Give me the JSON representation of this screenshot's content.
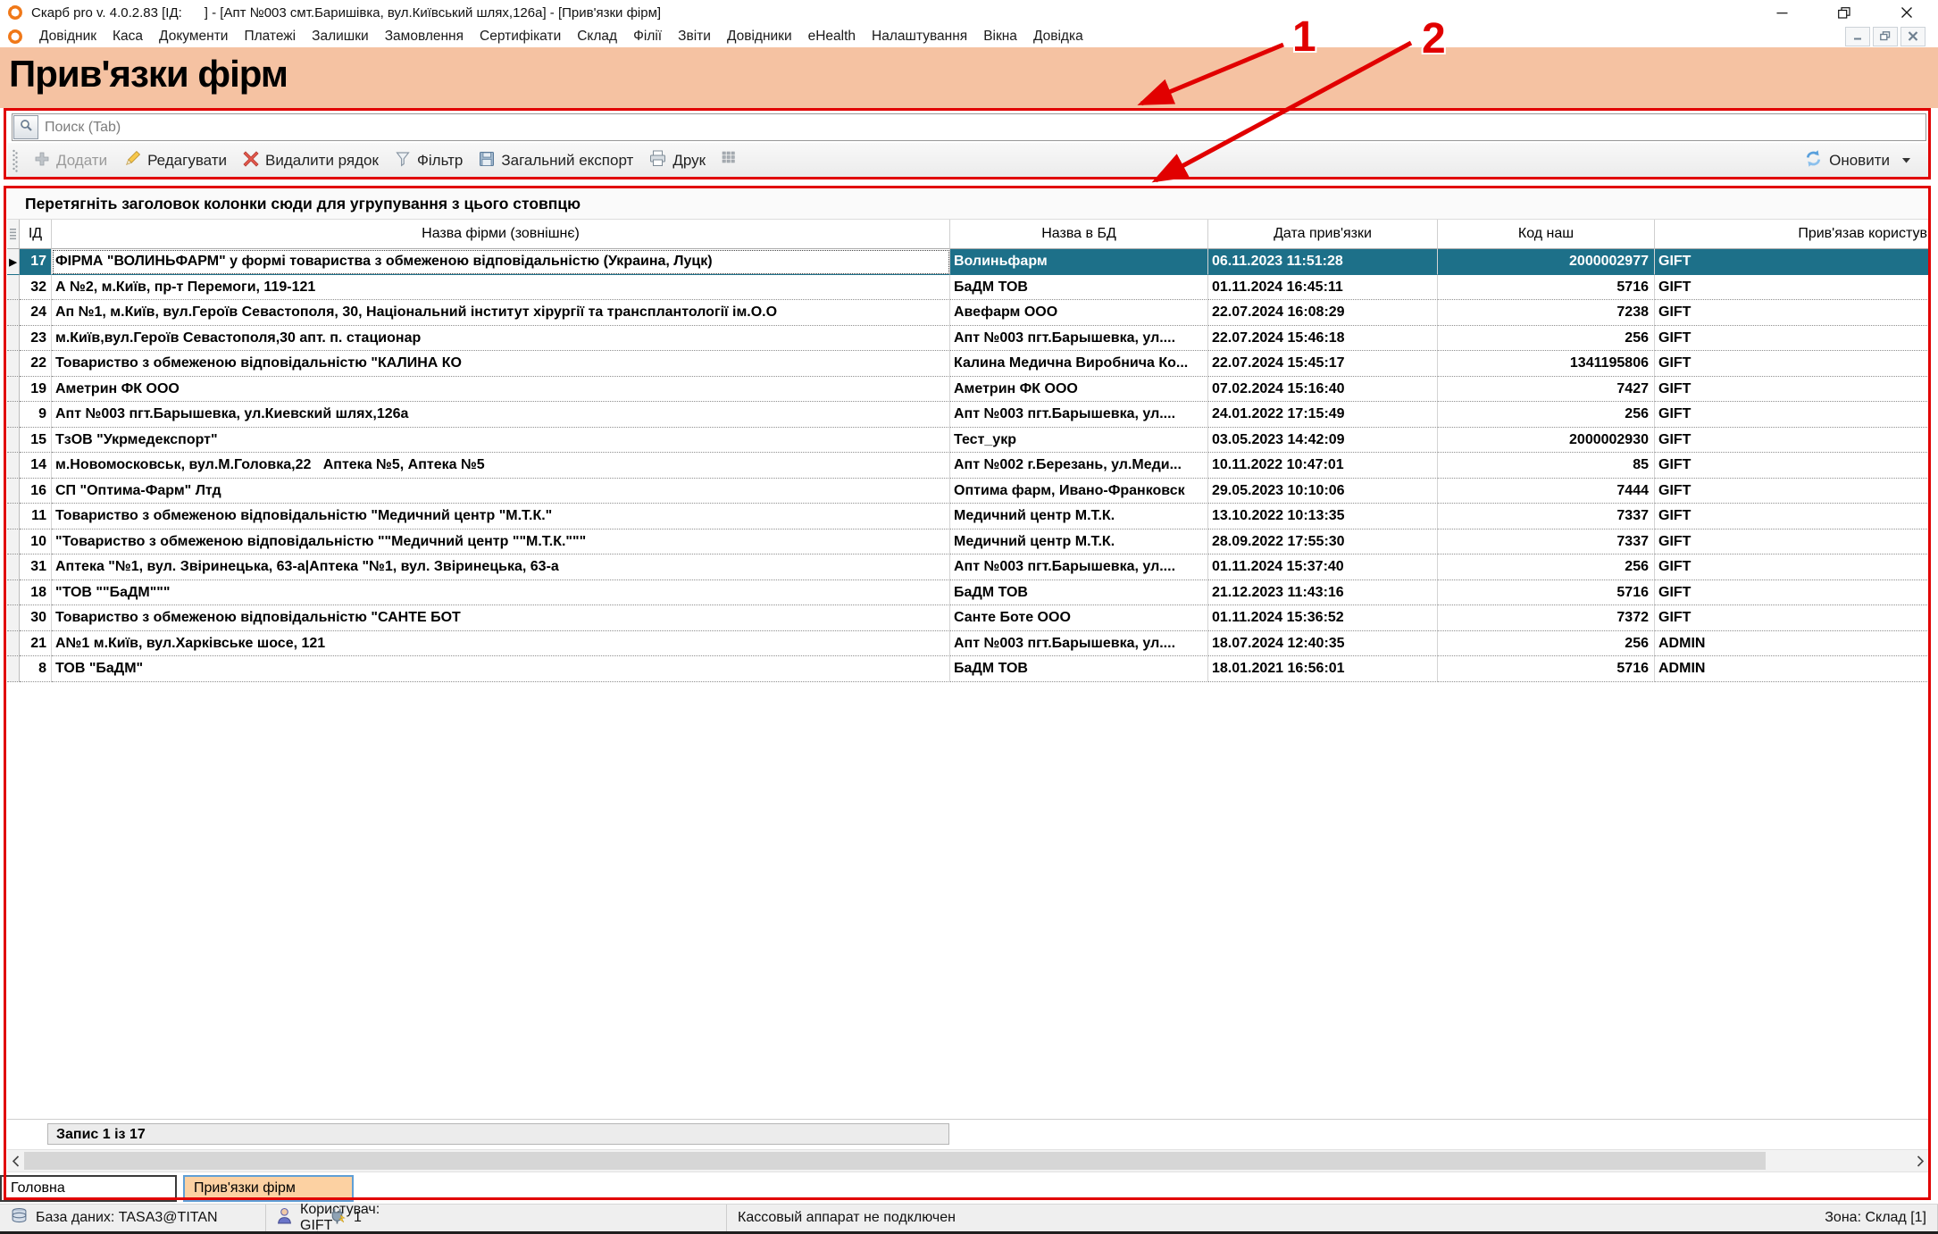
{
  "window": {
    "title": "Скарб pro v. 4.0.2.83 [ІД:      ] - [Апт №003 смт.Баришівка, вул.Київський шлях,126а] - [Прив'язки фірм]"
  },
  "menu": {
    "items": [
      {
        "label": "Довідник"
      },
      {
        "label": "Каса"
      },
      {
        "label": "Документи"
      },
      {
        "label": "Платежі"
      },
      {
        "label": "Залишки"
      },
      {
        "label": "Замовлення"
      },
      {
        "label": "Сертифікати"
      },
      {
        "label": "Склад"
      },
      {
        "label": "Філії"
      },
      {
        "label": "Звіти"
      },
      {
        "label": "Довідники"
      },
      {
        "label": "eHealth"
      },
      {
        "label": "Налаштування"
      },
      {
        "label": "Вікна"
      },
      {
        "label": "Довідка"
      }
    ]
  },
  "page": {
    "title": "Прив'язки фірм"
  },
  "search": {
    "placeholder": "Поиск (Tab)"
  },
  "toolbar": {
    "buttons": [
      {
        "icon": "plus-icon",
        "label": "Додати",
        "disabled": true
      },
      {
        "icon": "pencil-icon",
        "label": "Редагувати"
      },
      {
        "icon": "delete-x-icon",
        "label": "Видалити рядок"
      },
      {
        "icon": "filter-icon",
        "label": "Фільтр"
      },
      {
        "icon": "export-icon",
        "label": "Загальний експорт"
      },
      {
        "icon": "print-icon",
        "label": "Друк"
      },
      {
        "icon": "columns-icon",
        "label": ""
      }
    ],
    "refresh": {
      "icon": "refresh-icon",
      "label": "Оновити"
    }
  },
  "grid": {
    "group_hint": "Перетягніть заголовок колонки сюди для угрупування з цього стовпцю",
    "columns": {
      "id": "ІД",
      "name": "Назва фірми (зовнішнє)",
      "db": "Назва в БД",
      "date": "Дата прив'язки",
      "code": "Код наш",
      "user": "Прив'язав користув"
    },
    "rows": [
      {
        "id": "17",
        "name": "ФІРМА \"ВОЛИНЬФАРМ\" у формі товариства з обмеженою відповідальністю (Украина, Луцк)",
        "db": "Волиньфарм",
        "date": "06.11.2023 11:51:28",
        "code": "2000002977",
        "user": "GIFT",
        "selected": true
      },
      {
        "id": "32",
        "name": "А №2, м.Київ, пр-т Перемоги, 119-121",
        "db": "БаДМ ТОВ",
        "date": "01.11.2024 16:45:11",
        "code": "5716",
        "user": "GIFT"
      },
      {
        "id": "24",
        "name": "Ап №1, м.Київ, вул.Героїв Севастополя, 30, Національний інститут хірургії та трансплантології ім.О.О",
        "db": "Авефарм ООО",
        "date": "22.07.2024 16:08:29",
        "code": "7238",
        "user": "GIFT"
      },
      {
        "id": "23",
        "name": "м.Київ,вул.Героїв Севастополя,30 апт. п. стационар",
        "db": "Апт №003 пгт.Барышевка, ул....",
        "date": "22.07.2024 15:46:18",
        "code": "256",
        "user": "GIFT"
      },
      {
        "id": "22",
        "name": "Товариство з обмеженою відповідальністю \"КАЛИНА КО",
        "db": "Калина Медична Виробнича Ко...",
        "date": "22.07.2024 15:45:17",
        "code": "1341195806",
        "user": "GIFT"
      },
      {
        "id": "19",
        "name": "Аметрин ФК ООО",
        "db": "Аметрин ФК ООО",
        "date": "07.02.2024 15:16:40",
        "code": "7427",
        "user": "GIFT"
      },
      {
        "id": "9",
        "name": "Апт №003 пгт.Барышевка, ул.Киевский шлях,126а",
        "db": "Апт №003 пгт.Барышевка, ул....",
        "date": "24.01.2022 17:15:49",
        "code": "256",
        "user": "GIFT"
      },
      {
        "id": "15",
        "name": "ТзОВ \"Укрмедекспорт\"",
        "db": "Тест_укр",
        "date": "03.05.2023 14:42:09",
        "code": "2000002930",
        "user": "GIFT"
      },
      {
        "id": "14",
        "name": "м.Новомосковськ, вул.М.Головка,22   Аптека №5, Аптека №5",
        "db": "Апт №002 г.Березань, ул.Меди...",
        "date": "10.11.2022 10:47:01",
        "code": "85",
        "user": "GIFT"
      },
      {
        "id": "16",
        "name": "СП \"Оптима-Фарм\" Лтд",
        "db": "Оптима фарм, Ивано-Франковск",
        "date": "29.05.2023 10:10:06",
        "code": "7444",
        "user": "GIFT"
      },
      {
        "id": "11",
        "name": "Товариство з обмеженою відповідальністю \"Медичний центр \"М.Т.К.\"",
        "db": "Медичний центр М.Т.К.",
        "date": "13.10.2022 10:13:35",
        "code": "7337",
        "user": "GIFT"
      },
      {
        "id": "10",
        "name": "\"Товариство з обмеженою відповідальністю \"\"Медичний центр \"\"М.Т.К.\"\"\"",
        "db": "Медичний центр М.Т.К.",
        "date": "28.09.2022 17:55:30",
        "code": "7337",
        "user": "GIFT"
      },
      {
        "id": "31",
        "name": "Аптека \"№1, вул. Звіринецька, 63-а|Аптека \"№1, вул. Звіринецька, 63-а",
        "db": "Апт №003 пгт.Барышевка, ул....",
        "date": "01.11.2024 15:37:40",
        "code": "256",
        "user": "GIFT"
      },
      {
        "id": "18",
        "name": "\"ТОВ \"\"БаДМ\"\"\"",
        "db": "БаДМ ТОВ",
        "date": "21.12.2023 11:43:16",
        "code": "5716",
        "user": "GIFT"
      },
      {
        "id": "30",
        "name": "Товариство з обмеженою відповідальністю \"САНТЕ БОТ",
        "db": "Санте Боте ООО",
        "date": "01.11.2024 15:36:52",
        "code": "7372",
        "user": "GIFT"
      },
      {
        "id": "21",
        "name": "А№1 м.Київ, вул.Харківське шосе, 121",
        "db": "Апт №003 пгт.Барышевка, ул....",
        "date": "18.07.2024 12:40:35",
        "code": "256",
        "user": "ADMIN"
      },
      {
        "id": "8",
        "name": "ТОВ \"БаДМ\"",
        "db": "БаДМ ТОВ",
        "date": "18.01.2021 16:56:01",
        "code": "5716",
        "user": "ADMIN"
      }
    ],
    "record_counter": "Запис 1 із 17"
  },
  "tabs": {
    "items": [
      {
        "label": "Головна"
      },
      {
        "label": "Прив'язки фірм",
        "active": true
      }
    ]
  },
  "statusbar": {
    "items": [
      {
        "icon": "database-icon",
        "text": "База даних: TASA3@TITAN"
      },
      {
        "icon": "user-icon",
        "text": "Користувач: GIFT"
      },
      {
        "icon": "plug-icon",
        "text": "1"
      },
      {
        "text": "Кассовый аппарат не подключен"
      },
      {
        "text": "Зона: Склад [1]"
      }
    ]
  },
  "annotations": {
    "label1": "1",
    "label2": "2",
    "color": "#e10000"
  },
  "colors": {
    "selection_teal": "#1d7089",
    "band_salmon": "#f5c2a2",
    "active_tab_peach": "#fcd1a2",
    "annotation_red": "#e10000",
    "logo_orange": "#f07818"
  },
  "icons_used": [
    "app-logo-icon",
    "minimize-icon",
    "restore-icon",
    "close-icon",
    "mdi-minimize-icon",
    "mdi-restore-icon",
    "mdi-close-icon",
    "search-icon",
    "grip-icon",
    "plus-icon",
    "pencil-icon",
    "delete-x-icon",
    "filter-icon",
    "export-icon",
    "print-icon",
    "columns-icon",
    "refresh-icon",
    "caret-down-icon",
    "header-grip-icon",
    "selected-row-arrow-icon",
    "chevron-left-icon",
    "chevron-right-icon",
    "database-icon",
    "user-icon",
    "plug-icon"
  ]
}
